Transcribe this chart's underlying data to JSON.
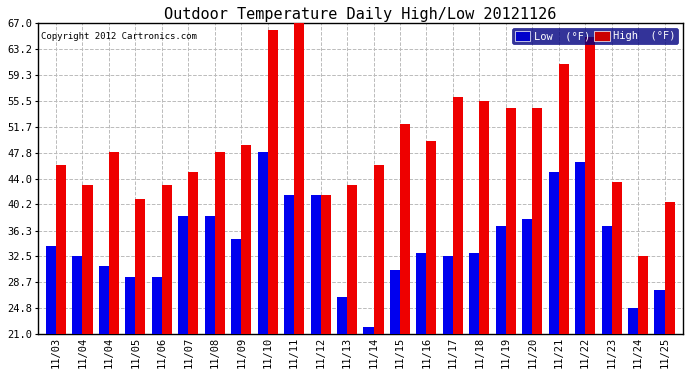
{
  "title": "Outdoor Temperature Daily High/Low 20121126",
  "copyright": "Copyright 2012 Cartronics.com",
  "legend_low_label": "Low  (°F)",
  "legend_high_label": "High  (°F)",
  "dates": [
    "11/03",
    "11/04",
    "11/04",
    "11/05",
    "11/06",
    "11/07",
    "11/08",
    "11/09",
    "11/10",
    "11/11",
    "11/12",
    "11/13",
    "11/14",
    "11/15",
    "11/16",
    "11/17",
    "11/18",
    "11/19",
    "11/20",
    "11/21",
    "11/22",
    "11/23",
    "11/24",
    "11/25"
  ],
  "high": [
    46.0,
    43.0,
    48.0,
    41.0,
    43.0,
    45.0,
    48.0,
    49.0,
    66.0,
    67.0,
    41.5,
    43.0,
    46.0,
    52.0,
    49.5,
    56.0,
    55.5,
    54.5,
    54.5,
    61.0,
    65.0,
    43.5,
    32.5,
    40.5
  ],
  "low": [
    34.0,
    32.5,
    31.0,
    29.5,
    29.5,
    38.5,
    38.5,
    35.0,
    48.0,
    41.5,
    41.5,
    26.5,
    22.0,
    30.5,
    33.0,
    32.5,
    33.0,
    37.0,
    38.0,
    45.0,
    46.5,
    37.0,
    24.8,
    27.5
  ],
  "ylim_min": 21.0,
  "ylim_max": 67.0,
  "yticks": [
    21.0,
    24.8,
    28.7,
    32.5,
    36.3,
    40.2,
    44.0,
    47.8,
    51.7,
    55.5,
    59.3,
    63.2,
    67.0
  ],
  "bar_width": 0.38,
  "low_color": "#0000ee",
  "high_color": "#ee0000",
  "bg_color": "#ffffff",
  "grid_color": "#bbbbbb",
  "title_fontsize": 11,
  "tick_fontsize": 7.5,
  "legend_low_bg": "#0000cc",
  "legend_high_bg": "#cc0000",
  "legend_text_color": "#ffffff",
  "border_color": "#000000"
}
